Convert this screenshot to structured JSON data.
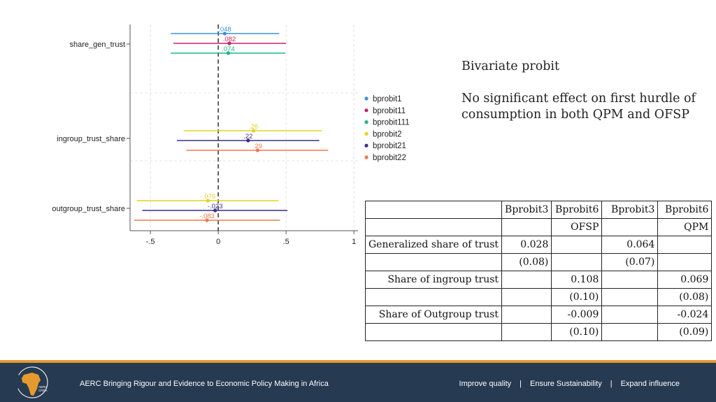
{
  "chart_data": {
    "type": "scatter",
    "title": "",
    "xlabel": "",
    "ylabel": "",
    "xlim": [
      -0.65,
      1.03
    ],
    "xticks": [
      -0.5,
      0,
      0.5,
      1
    ],
    "xtick_labels": [
      "-.5",
      "0",
      ".5",
      "1"
    ],
    "grid": true,
    "legend_position": "right",
    "categories": [
      "share_gen_trust",
      "ingroup_trust_share",
      "outgroup_trust_share"
    ],
    "series": [
      {
        "name": "bprobit1",
        "color": "#3d8fe0",
        "points": [
          {
            "category": "share_gen_trust",
            "estimate": 0.048,
            "label": ".048",
            "ci": [
              -0.35,
              0.45
            ]
          }
        ]
      },
      {
        "name": "bprobit11",
        "color": "#cc2060",
        "points": [
          {
            "category": "share_gen_trust",
            "estimate": 0.082,
            "label": ".082",
            "ci": [
              -0.33,
              0.5
            ]
          }
        ]
      },
      {
        "name": "bprobit111",
        "color": "#1cb58a",
        "points": [
          {
            "category": "share_gen_trust",
            "estimate": 0.074,
            "label": ".074",
            "ci": [
              -0.35,
              0.495
            ]
          }
        ]
      },
      {
        "name": "bprobit2",
        "color": "#e6d020",
        "points": [
          {
            "category": "ingroup_trust_share",
            "estimate": 0.26,
            "label": ".26",
            "ci": [
              -0.255,
              0.765
            ]
          },
          {
            "category": "outgroup_trust_share",
            "estimate": -0.076,
            "label": "-.076",
            "ci": [
              -0.6,
              0.445
            ]
          }
        ]
      },
      {
        "name": "bprobit21",
        "color": "#3d2c8c",
        "points": [
          {
            "category": "ingroup_trust_share",
            "estimate": 0.22,
            "label": ".22",
            "ci": [
              -0.305,
              0.745
            ]
          },
          {
            "category": "outgroup_trust_share",
            "estimate": -0.023,
            "label": "-.023",
            "ci": [
              -0.56,
              0.51
            ]
          }
        ]
      },
      {
        "name": "bprobit22",
        "color": "#f07848",
        "points": [
          {
            "category": "ingroup_trust_share",
            "estimate": 0.29,
            "label": ".29",
            "ci": [
              -0.235,
              0.81
            ]
          },
          {
            "category": "outgroup_trust_share",
            "estimate": -0.083,
            "label": "-.083",
            "ci": [
              -0.62,
              0.455
            ]
          }
        ]
      }
    ]
  },
  "note": {
    "title": "Bivariate probit",
    "body": "No significant effect on first hurdle of consumption in both QPM and OFSP"
  },
  "table": {
    "rows": [
      [
        "",
        "Bprobit3",
        "Bprobit6",
        "Bprobit3",
        "Bprobit6"
      ],
      [
        "",
        "",
        "OFSP",
        "",
        "QPM"
      ],
      [
        "Generalized share of trust",
        "0.028",
        "",
        "0.064",
        ""
      ],
      [
        "",
        "(0.08)",
        "",
        "(0.07)",
        ""
      ],
      [
        "Share of ingroup trust",
        "",
        "0.108",
        "",
        "0.069"
      ],
      [
        "",
        "",
        "(0.10)",
        "",
        "(0.08)"
      ],
      [
        "Share of Outgroup trust",
        "",
        "-0.009",
        "",
        "-0.024"
      ],
      [
        "",
        "",
        "(0.10)",
        "",
        "(0.09)"
      ]
    ]
  },
  "footer": {
    "logo_text": "AERC CREA",
    "tagline": "AERC Bringing Rigour and Evidence to Economic Policy Making in Africa",
    "nav": [
      "Improve quality",
      "Ensure Sustainability",
      "Expand influence"
    ],
    "separator": "|",
    "bar_color": "#263a52",
    "accent_color": "#e69a2e"
  }
}
